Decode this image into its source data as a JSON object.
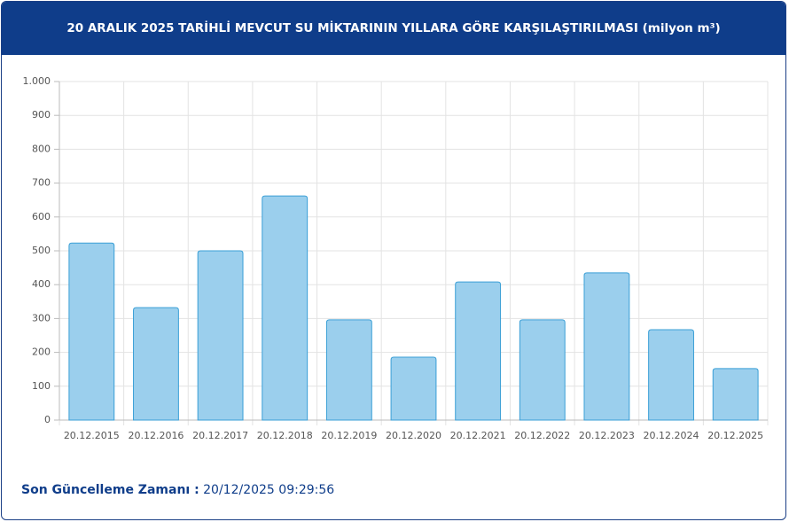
{
  "chart_data": {
    "type": "bar",
    "title": "20 ARALIK 2025 TARİHLİ MEVCUT SU MİKTARININ YILLARA GÖRE KARŞILAŞTIRILMASI (milyon m³)",
    "categories": [
      "20.12.2015",
      "20.12.2016",
      "20.12.2017",
      "20.12.2018",
      "20.12.2019",
      "20.12.2020",
      "20.12.2021",
      "20.12.2022",
      "20.12.2023",
      "20.12.2024",
      "20.12.2025"
    ],
    "values": [
      523,
      332,
      500,
      662,
      296,
      186,
      408,
      296,
      435,
      267,
      152
    ],
    "color": "#9bcfed",
    "edge_color": "#3a9fd6",
    "ylim": [
      0,
      1000
    ],
    "yticks": [
      0,
      100,
      200,
      300,
      400,
      500,
      600,
      700,
      800,
      900,
      {
        "value": 1000,
        "label": "1.000"
      }
    ],
    "grid": true
  },
  "footer": {
    "label": "Son Güncelleme Zamanı :",
    "value": "20/12/2025 09:29:56"
  }
}
